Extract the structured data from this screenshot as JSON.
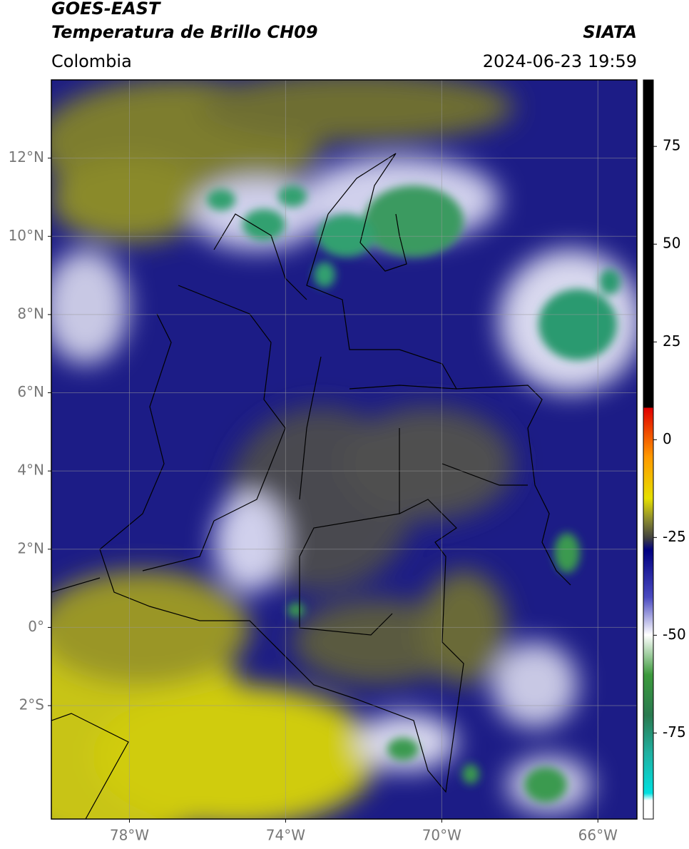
{
  "header": {
    "title_line1": "GOES-EAST",
    "title_line2": "Temperatura de Brillo CH09",
    "source": "SIATA",
    "region": "Colombia",
    "timestamp": "2024-06-23 19:59"
  },
  "map": {
    "xlim": [
      -80,
      -65
    ],
    "ylim": [
      -4.9,
      14
    ],
    "xticks": [
      {
        "value": -78,
        "label": "78°W"
      },
      {
        "value": -74,
        "label": "74°W"
      },
      {
        "value": -70,
        "label": "70°W"
      },
      {
        "value": -66,
        "label": "66°W"
      }
    ],
    "yticks": [
      {
        "value": 12,
        "label": "12°N"
      },
      {
        "value": 10,
        "label": "10°N"
      },
      {
        "value": 8,
        "label": "8°N"
      },
      {
        "value": 6,
        "label": "6°N"
      },
      {
        "value": 4,
        "label": "4°N"
      },
      {
        "value": 2,
        "label": "2°N"
      },
      {
        "value": 0,
        "label": "0°"
      },
      {
        "value": -2,
        "label": "2°S"
      }
    ],
    "grid": true
  },
  "colorbar": {
    "clim": [
      -97,
      92
    ],
    "ticks": [
      75,
      50,
      25,
      0,
      -25,
      -50,
      -75
    ]
  }
}
